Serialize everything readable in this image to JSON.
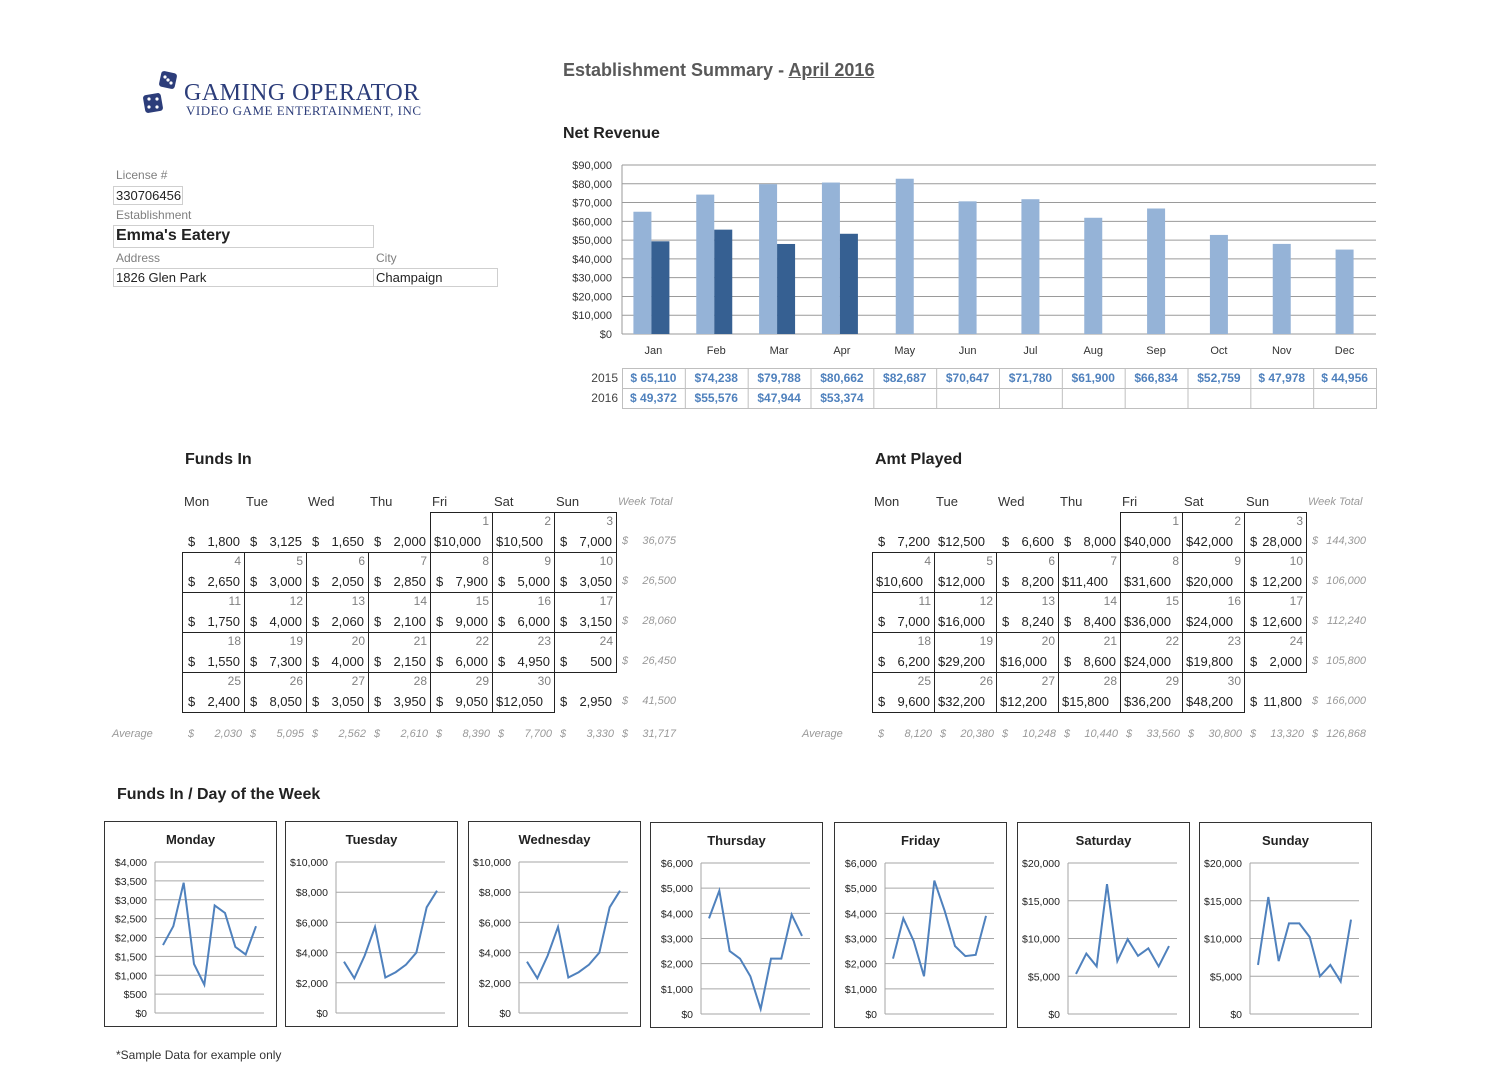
{
  "logo": {
    "line1": "GAMING OPERATOR",
    "line2": "VIDEO GAME ENTERTAINMENT, INC"
  },
  "header": {
    "title_prefix": "Establishment Summary - ",
    "month": "April 2016"
  },
  "info": {
    "license_label": "License #",
    "license_value": "330706456",
    "establishment_label": "Establishment",
    "establishment_value": "Emma's Eatery",
    "address_label": "Address",
    "address_value": "1826 Glen Park",
    "city_label": "City",
    "city_value": "Champaign"
  },
  "colors": {
    "light_bar": "#95b3d7",
    "dark_bar": "#366092",
    "line": "#4f81bd",
    "value_text": "#4f81bd"
  },
  "net_revenue": {
    "title": "Net Revenue",
    "row_labels": [
      "2015",
      "2016"
    ],
    "values_2015": [
      "$ 65,110",
      "$74,238",
      "$79,788",
      "$80,662",
      "$82,687",
      "$70,647",
      "$71,780",
      "$61,900",
      "$66,834",
      "$52,759",
      "$ 47,978",
      "$ 44,956"
    ],
    "values_2016": [
      "$ 49,372",
      "$55,576",
      "$47,944",
      "$53,374",
      "",
      "",
      "",
      "",
      "",
      "",
      "",
      ""
    ]
  },
  "chart_data": [
    {
      "type": "bar",
      "title": "Net Revenue",
      "categories": [
        "Jan",
        "Feb",
        "Mar",
        "Apr",
        "May",
        "Jun",
        "Jul",
        "Aug",
        "Sep",
        "Oct",
        "Nov",
        "Dec"
      ],
      "series": [
        {
          "name": "2015",
          "values": [
            65110,
            74238,
            79788,
            80662,
            82687,
            70647,
            71780,
            61900,
            66834,
            52759,
            47978,
            44956
          ]
        },
        {
          "name": "2016",
          "values": [
            49372,
            55576,
            47944,
            53374,
            null,
            null,
            null,
            null,
            null,
            null,
            null,
            null
          ]
        }
      ],
      "ylim": [
        0,
        90000
      ],
      "yticks": [
        "$0",
        "$10,000",
        "$20,000",
        "$30,000",
        "$40,000",
        "$50,000",
        "$60,000",
        "$70,000",
        "$80,000",
        "$90,000"
      ],
      "grid": true
    },
    {
      "type": "line",
      "title": "Monday",
      "values": [
        1800,
        2300,
        3450,
        1300,
        750,
        2850,
        2650,
        1750,
        1550,
        2300
      ],
      "ylim": [
        0,
        4000
      ],
      "yticks": [
        "$0",
        "$500",
        "$1,000",
        "$1,500",
        "$2,000",
        "$2,500",
        "$3,000",
        "$3,500",
        "$4,000"
      ]
    },
    {
      "type": "line",
      "title": "Tuesday",
      "values": [
        3400,
        2300,
        3800,
        5700,
        2350,
        2700,
        3200,
        4000,
        7000,
        8100
      ],
      "ylim": [
        0,
        10000
      ],
      "yticks": [
        "$0",
        "$2,000",
        "$4,000",
        "$6,000",
        "$8,000",
        "$10,000"
      ]
    },
    {
      "type": "line",
      "title": "Wednesday",
      "values": [
        3400,
        2300,
        3800,
        5700,
        2350,
        2700,
        3200,
        4000,
        7000,
        8100
      ],
      "ylim": [
        0,
        10000
      ],
      "yticks": [
        "$0",
        "$2,000",
        "$4,000",
        "$6,000",
        "$8,000",
        "$10,000"
      ]
    },
    {
      "type": "line",
      "title": "Thursday",
      "values": [
        3800,
        4900,
        2500,
        2200,
        1500,
        200,
        2200,
        2200,
        3950,
        3100
      ],
      "ylim": [
        0,
        6000
      ],
      "yticks": [
        "$0",
        "$1,000",
        "$2,000",
        "$3,000",
        "$4,000",
        "$5,000",
        "$6,000"
      ]
    },
    {
      "type": "line",
      "title": "Friday",
      "values": [
        2200,
        3800,
        2900,
        1500,
        5300,
        4100,
        2700,
        2300,
        2350,
        3900
      ],
      "ylim": [
        0,
        6000
      ],
      "yticks": [
        "$0",
        "$1,000",
        "$2,000",
        "$3,000",
        "$4,000",
        "$5,000",
        "$6,000"
      ]
    },
    {
      "type": "line",
      "title": "Saturday",
      "values": [
        5300,
        8000,
        6300,
        17200,
        7000,
        9900,
        7700,
        8700,
        6300,
        9000
      ],
      "ylim": [
        0,
        20000
      ],
      "yticks": [
        "$0",
        "$5,000",
        "$10,000",
        "$15,000",
        "$20,000"
      ]
    },
    {
      "type": "line",
      "title": "Sunday",
      "values": [
        6500,
        15500,
        7000,
        12000,
        12000,
        10200,
        5000,
        6500,
        4300,
        12500
      ],
      "ylim": [
        0,
        20000
      ],
      "yticks": [
        "$0",
        "$5,000",
        "$10,000",
        "$15,000",
        "$20,000"
      ]
    }
  ],
  "funds_in": {
    "title": "Funds In",
    "days": [
      "Mon",
      "Tue",
      "Wed",
      "Thu",
      "Fri",
      "Sat",
      "Sun"
    ],
    "week_total_label": "Week Total",
    "weeks": [
      {
        "days": [
          null,
          null,
          null,
          null,
          "1",
          "2",
          "3"
        ],
        "amounts": [
          "1,800",
          "3,125",
          "1,650",
          "2,000",
          "$10,000",
          "$10,500",
          "7,000"
        ],
        "total": "36,075"
      },
      {
        "days": [
          "4",
          "5",
          "6",
          "7",
          "8",
          "9",
          "10"
        ],
        "amounts": [
          "2,650",
          "3,000",
          "2,050",
          "2,850",
          "7,900",
          "5,000",
          "3,050"
        ],
        "total": "26,500"
      },
      {
        "days": [
          "11",
          "12",
          "13",
          "14",
          "15",
          "16",
          "17"
        ],
        "amounts": [
          "1,750",
          "4,000",
          "2,060",
          "2,100",
          "9,000",
          "6,000",
          "3,150"
        ],
        "total": "28,060"
      },
      {
        "days": [
          "18",
          "19",
          "20",
          "21",
          "22",
          "23",
          "24"
        ],
        "amounts": [
          "1,550",
          "7,300",
          "4,000",
          "2,150",
          "6,000",
          "4,950",
          "500"
        ],
        "total": "26,450"
      },
      {
        "days": [
          "25",
          "26",
          "27",
          "28",
          "29",
          "30",
          null
        ],
        "amounts": [
          "2,400",
          "8,050",
          "3,050",
          "3,950",
          "9,050",
          "$12,050",
          "2,950"
        ],
        "total": "41,500"
      }
    ],
    "average_label": "Average",
    "averages": [
      "2,030",
      "5,095",
      "2,562",
      "2,610",
      "8,390",
      "7,700",
      "3,330",
      "31,717"
    ]
  },
  "amt_played": {
    "title": "Amt Played",
    "days": [
      "Mon",
      "Tue",
      "Wed",
      "Thu",
      "Fri",
      "Sat",
      "Sun"
    ],
    "week_total_label": "Week Total",
    "weeks": [
      {
        "days": [
          null,
          null,
          null,
          null,
          "1",
          "2",
          "3"
        ],
        "amounts": [
          "7,200",
          "$12,500",
          "6,600",
          "8,000",
          "$40,000",
          "$42,000",
          "28,000"
        ],
        "total": "144,300"
      },
      {
        "days": [
          "4",
          "5",
          "6",
          "7",
          "8",
          "9",
          "10"
        ],
        "amounts": [
          "$10,600",
          "$12,000",
          "8,200",
          "$11,400",
          "$31,600",
          "$20,000",
          "12,200"
        ],
        "total": "106,000"
      },
      {
        "days": [
          "11",
          "12",
          "13",
          "14",
          "15",
          "16",
          "17"
        ],
        "amounts": [
          "7,000",
          "$16,000",
          "8,240",
          "8,400",
          "$36,000",
          "$24,000",
          "12,600"
        ],
        "total": "112,240"
      },
      {
        "days": [
          "18",
          "19",
          "20",
          "21",
          "22",
          "23",
          "24"
        ],
        "amounts": [
          "6,200",
          "$29,200",
          "$16,000",
          "8,600",
          "$24,000",
          "$19,800",
          "2,000"
        ],
        "total": "105,800"
      },
      {
        "days": [
          "25",
          "26",
          "27",
          "28",
          "29",
          "30",
          null
        ],
        "amounts": [
          "9,600",
          "$32,200",
          "$12,200",
          "$15,800",
          "$36,200",
          "$48,200",
          "11,800"
        ],
        "total": "166,000"
      }
    ],
    "average_label": "Average",
    "averages": [
      "8,120",
      "20,380",
      "10,248",
      "10,440",
      "33,560",
      "30,800",
      "13,320",
      "126,868"
    ]
  },
  "dow": {
    "title": "Funds In / Day of the Week"
  },
  "footnote": "*Sample Data for example only"
}
